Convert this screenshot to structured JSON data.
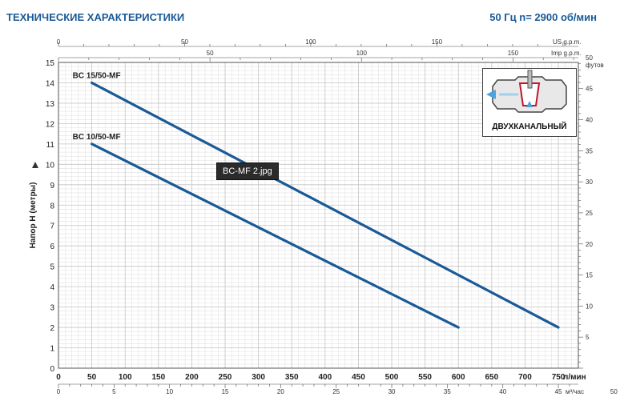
{
  "header": {
    "title": "ТЕХНИЧЕСКИЕ ХАРАКТЕРИСТИКИ",
    "spec": "50 Гц  n= 2900 об/мин"
  },
  "tooltip": {
    "text": "BC-MF 2.jpg"
  },
  "inset": {
    "label": "ДВУХКАНАЛЬНЫЙ",
    "icon": "pump-impeller-icon"
  },
  "chart_data": {
    "type": "line",
    "ylabel": "Напор Н (метры)",
    "x_unit_label": "л/мин",
    "x_ticks": [
      0,
      50,
      100,
      150,
      200,
      250,
      300,
      350,
      400,
      450,
      500,
      550,
      600,
      650,
      700,
      750
    ],
    "y_ticks": [
      0,
      1,
      2,
      3,
      4,
      5,
      6,
      7,
      8,
      9,
      10,
      11,
      12,
      13,
      14,
      15
    ],
    "xlim": [
      0,
      780
    ],
    "ylim": [
      0,
      15
    ],
    "grid": true,
    "series": [
      {
        "name": "BC 15/50-MF",
        "x": [
          50,
          750
        ],
        "y": [
          14,
          2
        ],
        "color": "#1a5a96"
      },
      {
        "name": "BC 10/50-MF",
        "x": [
          50,
          600
        ],
        "y": [
          11,
          2
        ],
        "color": "#1a5a96"
      }
    ],
    "secondary_axes": {
      "us_gpm": {
        "label": "US g.p.m.",
        "ticks": [
          0,
          50,
          100,
          150
        ]
      },
      "imp_gpm": {
        "label": "Imp g.p.m.",
        "ticks": [
          50,
          100,
          150
        ]
      },
      "m3h": {
        "label": "м³/час",
        "ticks": [
          0,
          5,
          10,
          15,
          20,
          25,
          30,
          35,
          40,
          45,
          50
        ]
      },
      "feet": {
        "label": "футов",
        "ticks": [
          5,
          10,
          15,
          20,
          25,
          30,
          35,
          40,
          45,
          50
        ]
      }
    }
  }
}
